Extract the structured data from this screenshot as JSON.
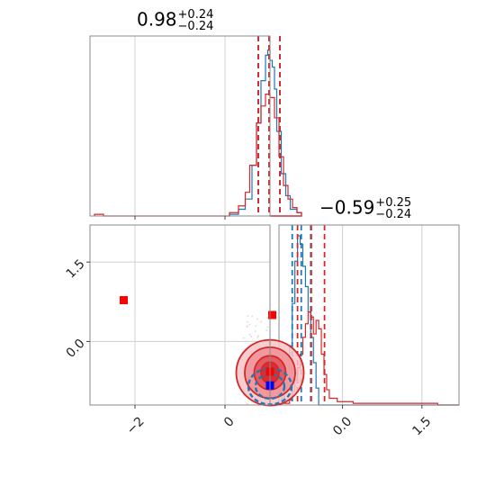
{
  "chart_data": [
    {
      "type": "histogram",
      "panel": "marginal-param-1",
      "title": {
        "value": "0.98",
        "plus": "+0.24",
        "minus": "−0.24"
      },
      "xlim": [
        -3.0,
        1.0
      ],
      "grid": true,
      "quantile_lines": {
        "blue": [
          0.74,
          0.98,
          1.22
        ],
        "red": [
          0.74,
          0.98,
          1.22
        ]
      },
      "series": [
        {
          "color": "#1f77b4",
          "bins": [
            0.1,
            0.3,
            0.45,
            0.6,
            0.7,
            0.8,
            0.9,
            0.95,
            1.0,
            1.05,
            1.1,
            1.15,
            1.25,
            1.35,
            1.45,
            1.6,
            1.7
          ],
          "counts": [
            1,
            4,
            10,
            30,
            55,
            80,
            95,
            98,
            92,
            88,
            75,
            50,
            25,
            12,
            4,
            2,
            0
          ]
        },
        {
          "color": "#d62728",
          "bins": [
            -2.9,
            -2.7,
            0.1,
            0.3,
            0.45,
            0.55,
            0.7,
            0.8,
            0.9,
            1.0,
            1.1,
            1.2,
            1.3,
            1.4,
            1.5,
            1.6,
            1.7
          ],
          "counts": [
            1,
            0,
            2,
            6,
            14,
            30,
            55,
            65,
            72,
            70,
            58,
            35,
            18,
            10,
            5,
            2,
            0
          ]
        }
      ]
    },
    {
      "type": "histogram",
      "panel": "marginal-param-2",
      "title": {
        "value": "−0.59",
        "plus": "+0.25",
        "minus": "−0.24"
      },
      "xlim": [
        -1.2,
        2.2
      ],
      "grid": true,
      "xticks": [
        "0.0",
        "1.5"
      ],
      "quantile_lines": {
        "blue": [
          -0.95,
          -0.78,
          -0.6
        ],
        "red": [
          -0.85,
          -0.59,
          -0.34
        ]
      },
      "series": [
        {
          "color": "#1f77b4",
          "bins": [
            -1.15,
            -1.1,
            -1.05,
            -1.0,
            -0.95,
            -0.9,
            -0.85,
            -0.8,
            -0.75,
            -0.7,
            -0.65,
            -0.6,
            -0.55,
            -0.5,
            -0.45
          ],
          "counts": [
            4,
            8,
            15,
            35,
            60,
            85,
            100,
            95,
            82,
            70,
            55,
            40,
            25,
            10,
            0
          ]
        },
        {
          "color": "#d62728",
          "bins": [
            -1.15,
            -1.0,
            -0.95,
            -0.9,
            -0.85,
            -0.8,
            -0.75,
            -0.7,
            -0.65,
            -0.6,
            -0.55,
            -0.5,
            -0.45,
            -0.4,
            -0.35,
            -0.3,
            -0.25,
            -0.1,
            0.2,
            0.6,
            1.2,
            1.8
          ],
          "counts": [
            1,
            3,
            8,
            15,
            22,
            30,
            40,
            48,
            55,
            52,
            42,
            50,
            45,
            30,
            18,
            9,
            4,
            2,
            1,
            1,
            1,
            0
          ]
        }
      ]
    },
    {
      "type": "scatter",
      "panel": "joint-2d",
      "xlim": [
        -3.0,
        1.0
      ],
      "ylim": [
        -1.2,
        2.2
      ],
      "grid": true,
      "xticks": [
        "−2",
        "0"
      ],
      "yticks": [
        "0.0",
        "1.5"
      ],
      "contours": [
        {
          "color": "#d62728",
          "center": [
            1.0,
            -0.59
          ],
          "radii_data": [
            [
              0.75,
              0.62
            ],
            [
              0.56,
              0.48
            ],
            [
              0.35,
              0.32
            ],
            [
              0.2,
              0.2
            ]
          ]
        },
        {
          "color": "#1f77b4",
          "center": [
            1.0,
            -0.85
          ],
          "radii_data": [
            [
              0.48,
              0.34
            ],
            [
              0.32,
              0.23
            ]
          ]
        }
      ],
      "markers": [
        {
          "color": "#ff0000",
          "shape": "square",
          "x": -2.25,
          "y": 0.78
        },
        {
          "color": "#ff0000",
          "shape": "square",
          "x": 1.05,
          "y": 0.5
        },
        {
          "color": "#ff0000",
          "shape": "square",
          "x": 1.0,
          "y": -0.57
        },
        {
          "color": "#0000ff",
          "shape": "square",
          "x": 1.0,
          "y": -0.83
        }
      ]
    }
  ]
}
